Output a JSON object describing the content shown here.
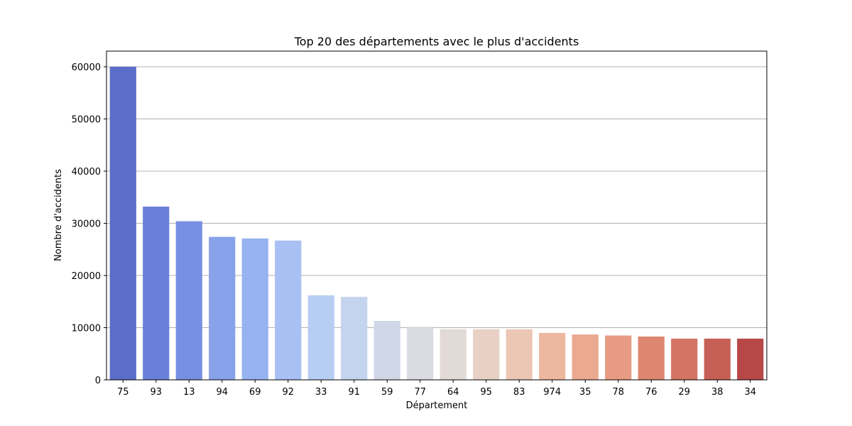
{
  "chart_data": {
    "type": "bar",
    "title": "Top 20 des départements avec le plus d'accidents",
    "xlabel": "Département",
    "ylabel": "Nombre d'accidents",
    "categories": [
      "75",
      "93",
      "13",
      "94",
      "69",
      "92",
      "33",
      "91",
      "59",
      "77",
      "64",
      "95",
      "83",
      "974",
      "35",
      "78",
      "76",
      "29",
      "38",
      "34"
    ],
    "values": [
      60000,
      33200,
      30400,
      27400,
      27100,
      26700,
      16200,
      15900,
      11300,
      10200,
      9700,
      9700,
      9700,
      9000,
      8700,
      8500,
      8300,
      7900,
      7900,
      7900
    ],
    "ylim": [
      0,
      63000
    ],
    "yticks": [
      0,
      10000,
      20000,
      30000,
      40000,
      50000,
      60000
    ],
    "grid": "y",
    "legend": "none",
    "colors": [
      "#5a6ec8",
      "#6a80d8",
      "#7890e2",
      "#88a2ea",
      "#97b2f0",
      "#a8c0f4",
      "#b7cdf2",
      "#c4d4ee",
      "#d0d8e8",
      "#dadce2",
      "#e2dad6",
      "#e8d0c4",
      "#ebc7b4",
      "#edb8a0",
      "#eba990",
      "#e69b82",
      "#dd8670",
      "#d47462",
      "#c66056",
      "#b84848"
    ]
  }
}
